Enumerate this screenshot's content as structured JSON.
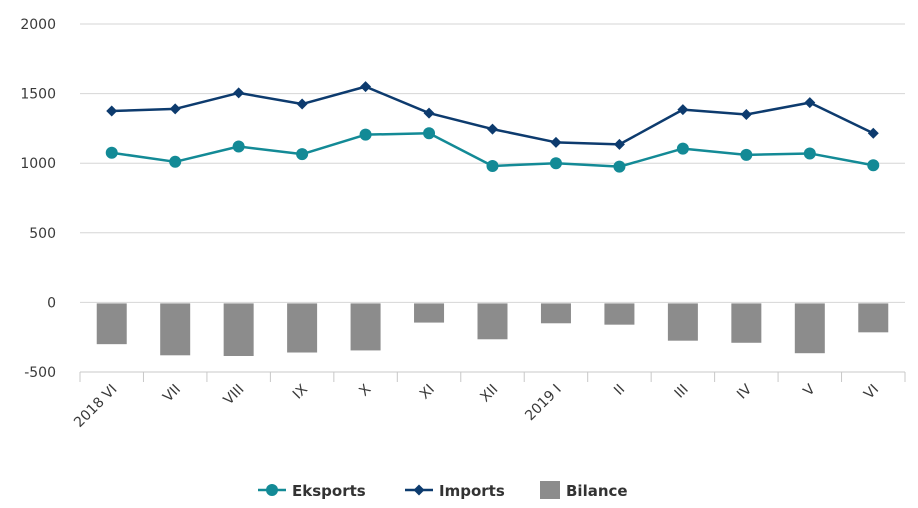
{
  "chart_data": {
    "type": "bar+line",
    "categories": [
      "2018 VI",
      "VII",
      "VIII",
      "IX",
      "X",
      "XI",
      "XII",
      "2019 I",
      "II",
      "III",
      "IV",
      "V",
      "VI"
    ],
    "ylim": [
      -500,
      2000
    ],
    "yticks": [
      2000,
      1500,
      1000,
      500,
      0,
      -500
    ],
    "grid": true,
    "legend_position": "bottom",
    "series": [
      {
        "name": "Eksports",
        "type": "line",
        "color": "#138a96",
        "marker": "circle",
        "values": [
          1075,
          1010,
          1120,
          1065,
          1205,
          1215,
          980,
          1000,
          975,
          1105,
          1060,
          1070,
          985
        ]
      },
      {
        "name": "Imports",
        "type": "line",
        "color": "#0d3b6e",
        "marker": "diamond",
        "values": [
          1375,
          1390,
          1505,
          1425,
          1550,
          1360,
          1245,
          1150,
          1135,
          1385,
          1350,
          1435,
          1215
        ]
      },
      {
        "name": "Bilance",
        "type": "bar",
        "color": "#8c8c8c",
        "values": [
          -300,
          -380,
          -385,
          -360,
          -345,
          -145,
          -265,
          -150,
          -160,
          -275,
          -290,
          -365,
          -215
        ]
      }
    ]
  }
}
